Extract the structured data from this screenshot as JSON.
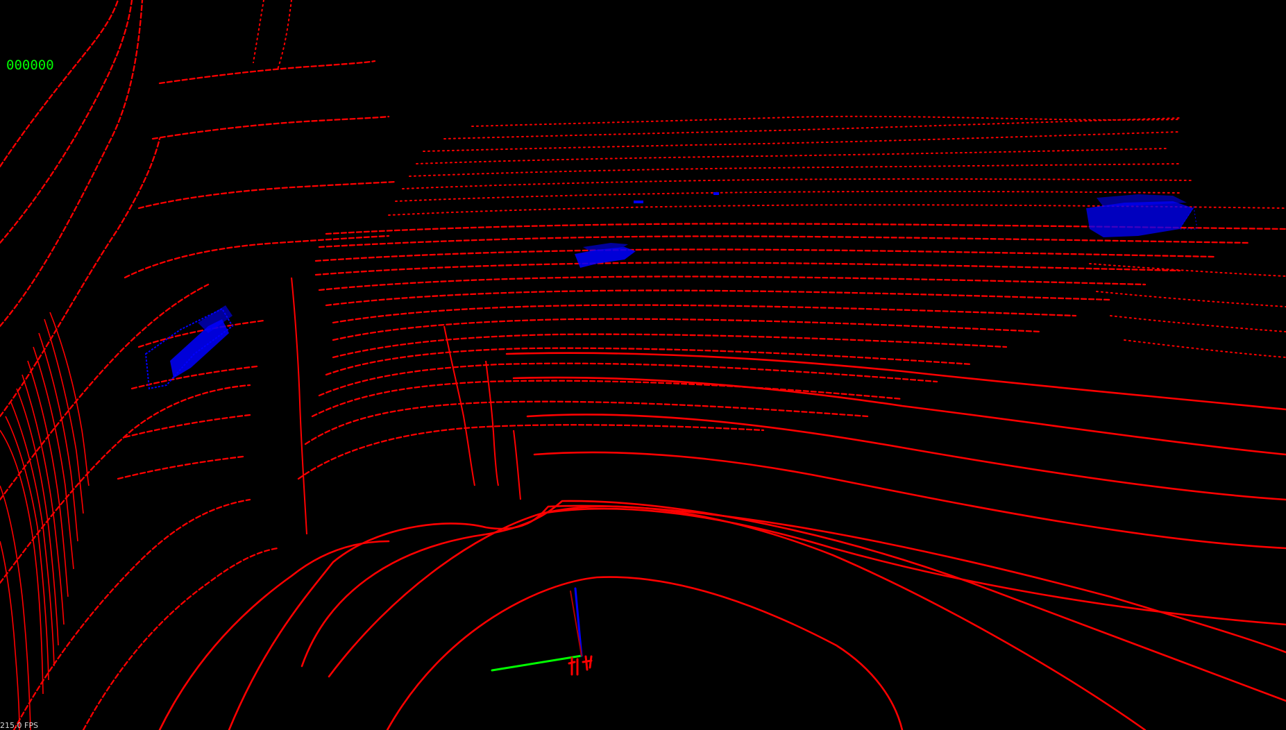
{
  "window": {
    "frame_label": "000000",
    "fps_label": "215.0 FPS"
  },
  "colors": {
    "background": "#000000",
    "ground_points": "#ff0000",
    "object_points": "#0000ff",
    "frame_text": "#00ff00",
    "axis_x": "#ff0000",
    "axis_y": "#00ff00",
    "axis_z": "#0000ff"
  },
  "scene": {
    "view": "3d-point-cloud",
    "detected_objects": 4
  }
}
